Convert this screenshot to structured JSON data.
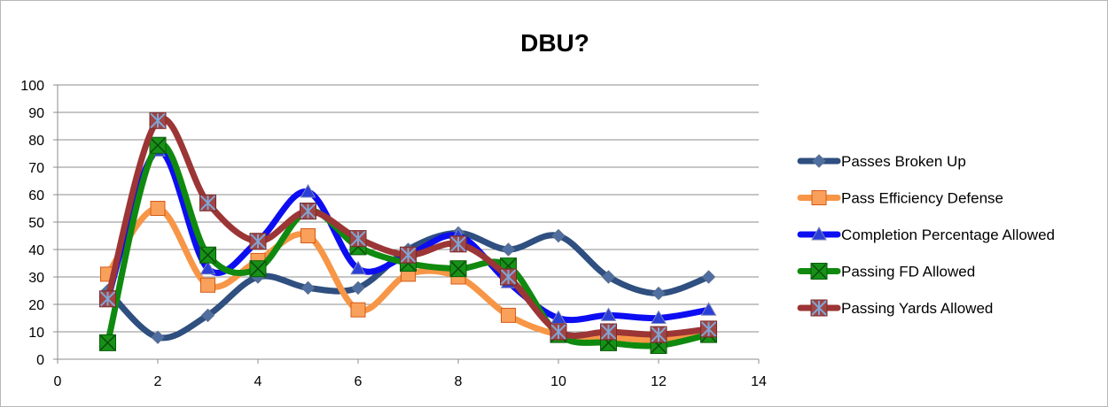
{
  "chart_data": {
    "type": "line",
    "title": "DBU?",
    "xlabel": "",
    "ylabel": "",
    "xlim": [
      0,
      14
    ],
    "ylim": [
      0,
      100
    ],
    "xticks": [
      0,
      2,
      4,
      6,
      8,
      10,
      12,
      14
    ],
    "yticks": [
      0,
      10,
      20,
      30,
      40,
      50,
      60,
      70,
      80,
      90,
      100
    ],
    "grid": "horizontal",
    "smooth": true,
    "legend_position": "right",
    "x": [
      1,
      2,
      3,
      4,
      5,
      6,
      7,
      8,
      9,
      10,
      11,
      12,
      13
    ],
    "series": [
      {
        "name": "Passes Broken Up",
        "color": "#2e4f7f",
        "marker": "diamond",
        "values": [
          25,
          8,
          16,
          30,
          26,
          26,
          40,
          46,
          40,
          45,
          30,
          24,
          30
        ]
      },
      {
        "name": "Pass Efficiency Defense",
        "color": "#f79646",
        "marker": "square",
        "values": [
          31,
          55,
          27,
          36,
          45,
          18,
          31,
          30,
          16,
          9,
          8,
          7,
          9
        ]
      },
      {
        "name": "Completion Percentage Allowed",
        "color": "#0d0df2",
        "marker": "triangle",
        "values": [
          22,
          76,
          33,
          43,
          61,
          33,
          38,
          45,
          28,
          15,
          16,
          15,
          18
        ]
      },
      {
        "name": "Passing FD Allowed",
        "color": "#0f8a0f",
        "marker": "x-square",
        "values": [
          6,
          78,
          38,
          33,
          54,
          41,
          35,
          33,
          34,
          9,
          6,
          5,
          9
        ]
      },
      {
        "name": "Passing Yards Allowed",
        "color": "#9c3535",
        "marker": "star",
        "values": [
          22,
          87,
          57,
          43,
          54,
          44,
          38,
          42,
          30,
          10,
          10,
          9,
          11
        ]
      }
    ]
  }
}
